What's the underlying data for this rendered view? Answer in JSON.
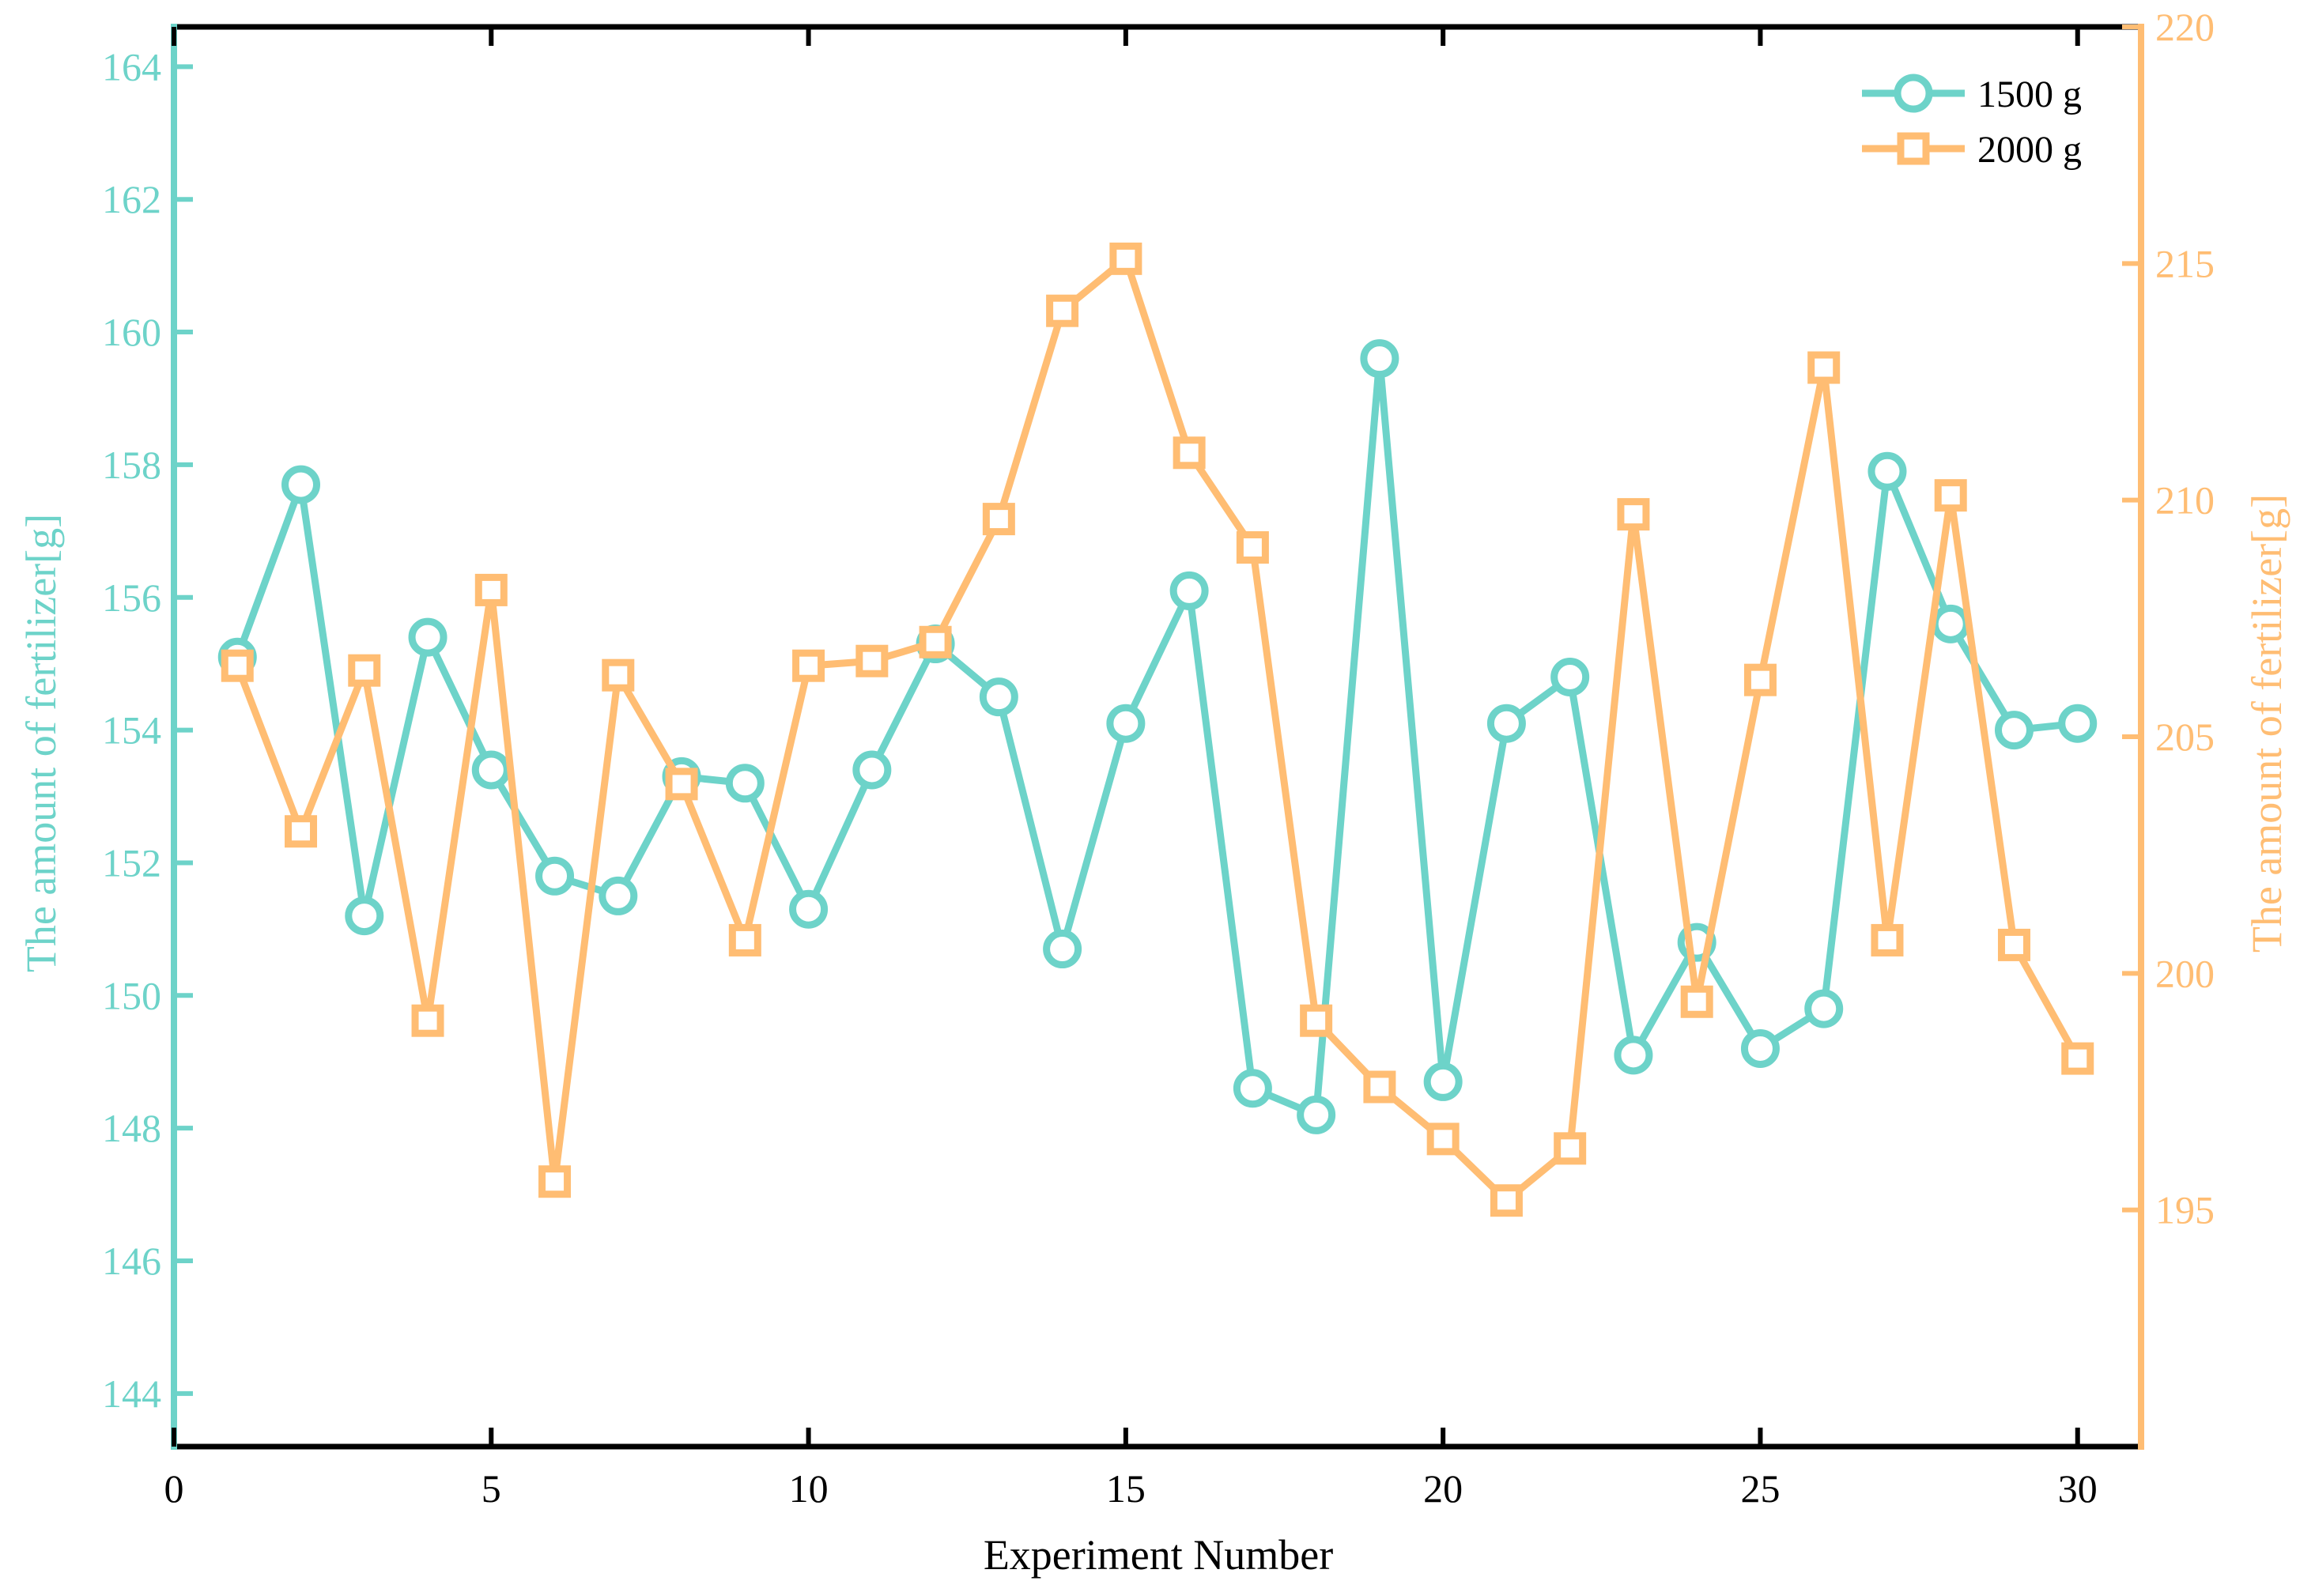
{
  "chart_data": {
    "type": "line",
    "title": "",
    "xlabel": "Experiment Number",
    "ylabel_left": "The amount of fertilizer[g]",
    "ylabel_right": "The amount of fertilizer[g]",
    "xlim": [
      0,
      31
    ],
    "ylim_left": [
      143.2,
      164.6
    ],
    "ylim_right": [
      190,
      220
    ],
    "xticks": [
      0,
      5,
      10,
      15,
      20,
      25,
      30
    ],
    "yticks_left": [
      144,
      146,
      148,
      150,
      152,
      154,
      156,
      158,
      160,
      162,
      164
    ],
    "yticks_right": [
      195,
      200,
      205,
      210,
      215,
      220
    ],
    "grid": false,
    "legend_position": "top-right",
    "colors": {
      "left_axis": "#6dd3c9",
      "right_axis": "#ffbd73",
      "frame": "#000000"
    },
    "x": [
      1,
      2,
      3,
      4,
      5,
      6,
      7,
      8,
      9,
      10,
      11,
      12,
      13,
      14,
      15,
      16,
      17,
      18,
      19,
      20,
      21,
      22,
      23,
      24,
      25,
      26,
      27,
      28,
      29,
      30
    ],
    "series": [
      {
        "name": "1500 g",
        "axis": "left",
        "marker": "circle",
        "color": "#6dd3c9",
        "values": [
          155.1,
          157.7,
          151.2,
          155.4,
          153.4,
          151.8,
          151.5,
          153.3,
          153.2,
          151.3,
          153.4,
          155.3,
          154.5,
          150.7,
          154.1,
          156.1,
          148.6,
          148.2,
          159.6,
          148.7,
          154.1,
          154.8,
          149.1,
          150.8,
          149.2,
          149.8,
          157.9,
          155.6,
          154.0,
          154.1
        ]
      },
      {
        "name": "2000 g",
        "axis": "right",
        "marker": "square",
        "color": "#ffbd73",
        "values": [
          206.5,
          203.0,
          206.4,
          199.0,
          208.1,
          195.6,
          206.3,
          204.0,
          200.7,
          206.5,
          206.6,
          207.0,
          209.6,
          214.0,
          215.1,
          211.0,
          209.0,
          199.0,
          197.6,
          196.5,
          195.2,
          196.3,
          209.7,
          199.4,
          206.2,
          212.8,
          200.7,
          210.1,
          200.6,
          198.2
        ]
      }
    ]
  }
}
